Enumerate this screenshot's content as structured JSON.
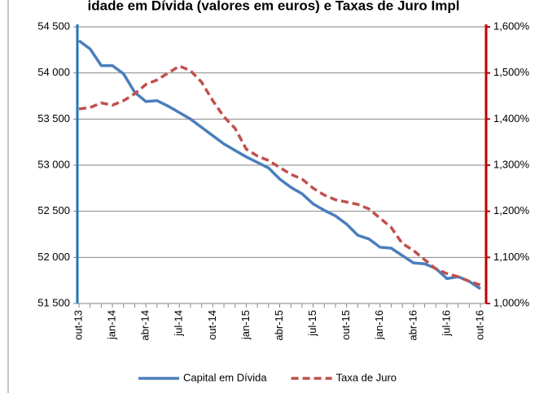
{
  "chart_data": {
    "type": "line",
    "title": "idade em Dívida (valores em euros) e Taxas de Juro Impl",
    "categories": [
      "out-13",
      null,
      null,
      "jan-14",
      null,
      null,
      "abr-14",
      null,
      null,
      "jul-14",
      null,
      null,
      "out-14",
      null,
      null,
      "jan-15",
      null,
      null,
      "abr-15",
      null,
      null,
      "jul-15",
      null,
      null,
      "out-15",
      null,
      null,
      "jan-16",
      null,
      null,
      "abr-16",
      null,
      null,
      "jul-16",
      null,
      null,
      "out-16"
    ],
    "series": [
      {
        "name": "Capital em Dívida",
        "color": "#4a7ebb",
        "axis": "y",
        "dash": false,
        "values": [
          54350,
          54260,
          54080,
          54080,
          53990,
          53790,
          53690,
          53700,
          53640,
          53570,
          53500,
          53410,
          53320,
          53230,
          53160,
          53090,
          53030,
          52970,
          52850,
          52760,
          52690,
          52580,
          52510,
          52450,
          52360,
          52240,
          52200,
          52110,
          52100,
          52020,
          51940,
          51930,
          51880,
          51770,
          51790,
          51740,
          51660
        ]
      },
      {
        "name": "Taxa de Juro",
        "color": "#c0504d",
        "axis": "y2",
        "dash": true,
        "values": [
          1.422,
          1.425,
          1.435,
          1.43,
          1.44,
          1.455,
          1.475,
          1.485,
          1.5,
          1.515,
          1.505,
          1.48,
          1.44,
          1.405,
          1.38,
          1.335,
          1.32,
          1.31,
          1.295,
          1.28,
          1.27,
          1.25,
          1.235,
          1.225,
          1.22,
          1.215,
          1.205,
          1.185,
          1.165,
          1.13,
          1.115,
          1.095,
          1.075,
          1.065,
          1.058,
          1.048,
          1.04
        ]
      }
    ],
    "ylim": [
      51500,
      54500
    ],
    "yticks": [
      {
        "value": 51500,
        "label": "51 500"
      },
      {
        "value": 52000,
        "label": "52 000"
      },
      {
        "value": 52500,
        "label": "52 500"
      },
      {
        "value": 53000,
        "label": "53 000"
      },
      {
        "value": 53500,
        "label": "53 500"
      },
      {
        "value": 54000,
        "label": "54 000"
      },
      {
        "value": 54500,
        "label": "54 500"
      }
    ],
    "y2lim": [
      1.0,
      1.6
    ],
    "y2ticks": [
      {
        "value": 1.0,
        "label": "1,000%"
      },
      {
        "value": 1.1,
        "label": "1,100%"
      },
      {
        "value": 1.2,
        "label": "1,200%"
      },
      {
        "value": 1.3,
        "label": "1,300%"
      },
      {
        "value": 1.4,
        "label": "1,400%"
      },
      {
        "value": 1.5,
        "label": "1,500%"
      },
      {
        "value": 1.6,
        "label": "1,600%"
      }
    ],
    "grid": true,
    "legend": "bottom"
  }
}
